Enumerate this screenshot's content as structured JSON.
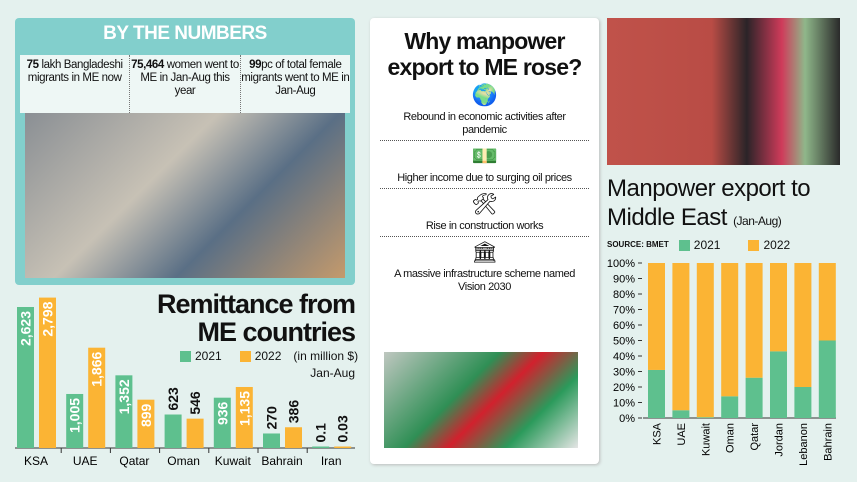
{
  "by_the_numbers": {
    "title": "BY THE NUMBERS",
    "stats": [
      {
        "value": "75",
        "text": " lakh Bangladeshi migrants in ME now"
      },
      {
        "value": "75,464",
        "text": " women went to ME in Jan-Aug this year"
      },
      {
        "value": "99",
        "text": "pc of total female migrants went to ME in Jan-Aug"
      }
    ]
  },
  "reasons": {
    "title": "Why manpower export to ME rose?",
    "items": [
      {
        "icon": "globe-growth-icon",
        "label": "Rebound in economic activities after pandemic"
      },
      {
        "icon": "money-icon",
        "label": "Higher income due to surging oil prices"
      },
      {
        "icon": "construction-tools-icon",
        "label": "Rise in construction works"
      },
      {
        "icon": "infrastructure-icon",
        "label": "A massive infrastructure scheme named Vision 2030"
      }
    ]
  },
  "colors": {
    "2021": "#5ec08e",
    "2022": "#fbb434",
    "panel": "#82cfcc",
    "background": "#e4f1ee"
  },
  "chart_data": [
    {
      "type": "bar",
      "title": "Remittance from ME countries",
      "unit": "(in million $)",
      "period": "Jan-Aug",
      "categories": [
        "KSA",
        "UAE",
        "Qatar",
        "Oman",
        "Kuwait",
        "Bahrain",
        "Iran"
      ],
      "series": [
        {
          "name": "2021",
          "values": [
            2623,
            1005,
            1352,
            623,
            936,
            270,
            0.1
          ],
          "labels": [
            "2,623",
            "1,005",
            "1,352",
            "623",
            "936",
            "270",
            "0.1"
          ]
        },
        {
          "name": "2022",
          "values": [
            2798,
            1866,
            899,
            546,
            1135,
            386,
            0.03
          ],
          "labels": [
            "2,798",
            "1,866",
            "899",
            "546",
            "1,135",
            "386",
            "0.03"
          ]
        }
      ],
      "legend": "top-right"
    },
    {
      "type": "bar",
      "stacked": true,
      "title": "Manpower export to Middle East",
      "period": "(Jan-Aug)",
      "source": "SOURCE: BMET",
      "categories": [
        "KSA",
        "UAE",
        "Kuwait",
        "Oman",
        "Qatar",
        "Jordan",
        "Lebanon",
        "Bahrain"
      ],
      "series": [
        {
          "name": "2021",
          "values": [
            31,
            5,
            0.5,
            14,
            26,
            43,
            20,
            50
          ]
        },
        {
          "name": "2022",
          "values": [
            69,
            95,
            99.5,
            86,
            74,
            57,
            80,
            50
          ]
        }
      ],
      "yticks": [
        "0%",
        "10%",
        "20%",
        "30%",
        "40%",
        "50%",
        "60%",
        "70%",
        "80%",
        "90%",
        "100%"
      ],
      "ylim": [
        0,
        100
      ],
      "legend": "top"
    }
  ]
}
